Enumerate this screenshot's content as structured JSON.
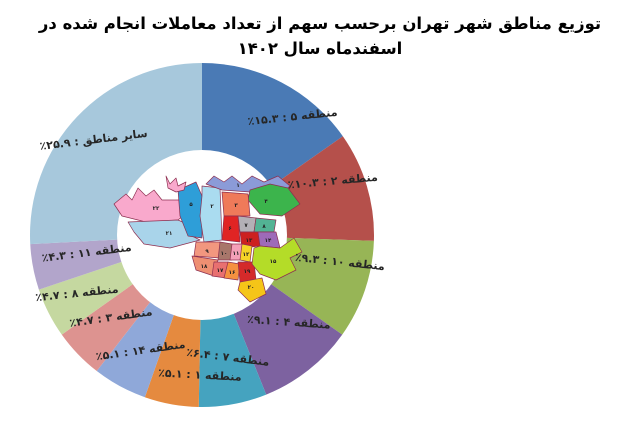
{
  "title": "توزیع مناطق شهر تهران برحسب سهم از تعداد معاملات انجام شده در اسفندماه سال ۱۴۰۲",
  "chart_data": {
    "type": "pie",
    "subtype": "donut-with-center-map",
    "legend_position": "none",
    "label_format": "name : percent",
    "unit": "٪",
    "segments": [
      {
        "label": "منطقه ۵",
        "display": "منطقه ۵ : ۱۵.۳٪",
        "value": 15.3,
        "color": "#4a7ab5"
      },
      {
        "label": "منطقه ۲",
        "display": "منطقه ۲ : ۱۰.۳٪",
        "value": 10.3,
        "color": "#b5504b"
      },
      {
        "label": "منطقه ۱۰",
        "display": "منطقه ۱۰ : ۹.۳٪",
        "value": 9.3,
        "color": "#97b556"
      },
      {
        "label": "منطقه ۴",
        "display": "منطقه ۴ : ۹.۱٪",
        "value": 9.1,
        "color": "#7d62a0"
      },
      {
        "label": "منطقه ۷",
        "display": "منطقه ۷ : ۶.۴٪",
        "value": 6.4,
        "color": "#45a3bf"
      },
      {
        "label": "منطقه ۱",
        "display": "منطقه ۱ : ۵.۱٪",
        "value": 5.1,
        "color": "#e58a3f"
      },
      {
        "label": "منطقه ۱۴",
        "display": "منطقه ۱۴ : ۵.۱٪",
        "value": 5.1,
        "color": "#8fa8d9"
      },
      {
        "label": "منطقه ۳",
        "display": "منطقه ۳ : ۴.۷٪",
        "value": 4.7,
        "color": "#dd9390"
      },
      {
        "label": "منطقه ۸",
        "display": "منطقه ۸ : ۴.۷٪",
        "value": 4.7,
        "color": "#c5d8a0"
      },
      {
        "label": "منطقه ۱۱",
        "display": "منطقه ۱۱ : ۴.۳٪",
        "value": 4.3,
        "color": "#b2a5cb"
      },
      {
        "label": "سایر مناطق",
        "display": "سایر مناطق : ۲۵.۹٪",
        "value": 25.9,
        "color": "#a7c8dc"
      }
    ],
    "label_color": "#262626",
    "hole_color": "#ffffff"
  },
  "map": {
    "name": "tehran-districts-map",
    "border_color": "#8d2f50",
    "districts": [
      {
        "number": "۲۲",
        "color": "#f9a9cc"
      },
      {
        "number": "۲۱",
        "color": "#a9d4ea"
      },
      {
        "number": "۵",
        "color": "#2e9ed8"
      },
      {
        "number": "۲",
        "color": "#aadcf0"
      },
      {
        "number": "۱",
        "color": "#8b9bd8"
      },
      {
        "number": "۴",
        "color": "#3cb44c"
      },
      {
        "number": "۳",
        "color": "#ef7a5a"
      },
      {
        "number": "۶",
        "color": "#e02424"
      },
      {
        "number": "۷",
        "color": "#b3b0b6"
      },
      {
        "number": "۸",
        "color": "#52b394"
      },
      {
        "number": "۱۳",
        "color": "#cc2020"
      },
      {
        "number": "۱۴",
        "color": "#9e6ab8"
      },
      {
        "number": "۹",
        "color": "#f2977f"
      },
      {
        "number": "۱۰",
        "color": "#a8766a"
      },
      {
        "number": "۱۱",
        "color": "#f4a0b8"
      },
      {
        "number": "۱۲",
        "color": "#f5d327"
      },
      {
        "number": "۱۸",
        "color": "#ee8f72"
      },
      {
        "number": "۱۷",
        "color": "#e87070"
      },
      {
        "number": "۱۶",
        "color": "#f59140"
      },
      {
        "number": "۱۹",
        "color": "#d42a2a"
      },
      {
        "number": "۲۰",
        "color": "#f5c518"
      },
      {
        "number": "۱۵",
        "color": "#b4dc28"
      },
      {
        "number": "",
        "color": "#f9a9cc"
      }
    ]
  }
}
